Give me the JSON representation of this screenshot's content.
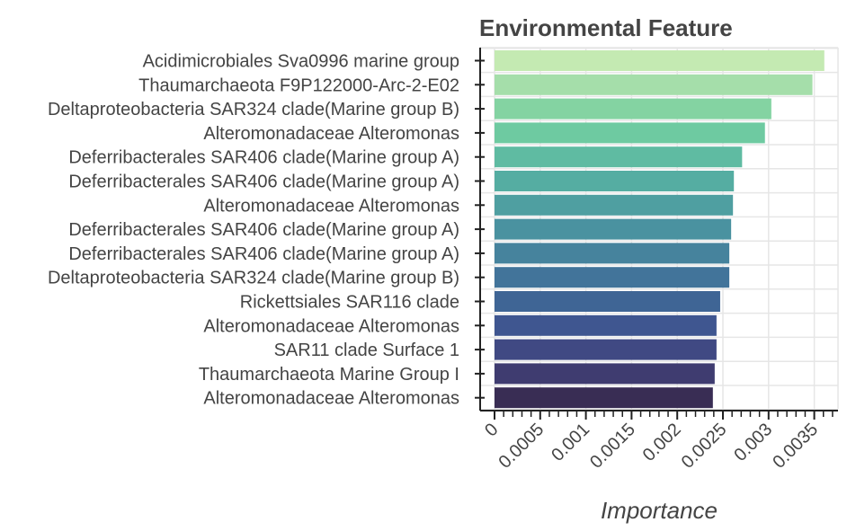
{
  "chart_data": {
    "type": "bar",
    "orientation": "horizontal",
    "title": "Environmental Feature",
    "xlabel": "Importance",
    "ylabel": "",
    "xlim": [
      0,
      0.00372
    ],
    "grid": true,
    "legend": "none",
    "x_ticks": [
      0,
      0.0005,
      0.001,
      0.0015,
      0.002,
      0.0025,
      0.003,
      0.0035
    ],
    "x_tick_labels": [
      "0",
      "0.0005",
      "0.001",
      "0.0015",
      "0.002",
      "0.0025",
      "0.003",
      "0.0035"
    ],
    "categories": [
      "Acidimicrobiales Sva0996 marine group",
      "Thaumarchaeota F9P122000-Arc-2-E02",
      "Deltaproteobacteria SAR324 clade(Marine group B)",
      "Alteromonadaceae Alteromonas",
      "Deferribacterales SAR406 clade(Marine group A)",
      "Deferribacterales SAR406 clade(Marine group A)",
      "Alteromonadaceae Alteromonas",
      "Deferribacterales SAR406 clade(Marine group A)",
      "Deferribacterales SAR406 clade(Marine group A)",
      "Deltaproteobacteria SAR324 clade(Marine group B)",
      "Rickettsiales SAR116 clade",
      "Alteromonadaceae Alteromonas",
      "SAR11 clade Surface 1",
      "Thaumarchaeota Marine Group I",
      "Alteromonadaceae Alteromonas"
    ],
    "values": [
      0.00361,
      0.00348,
      0.00303,
      0.00296,
      0.00271,
      0.00262,
      0.00261,
      0.00259,
      0.00257,
      0.00257,
      0.00247,
      0.00243,
      0.00243,
      0.00241,
      0.00239
    ],
    "colors": [
      "#c4eab2",
      "#a5deaa",
      "#84d3a2",
      "#6ecaa1",
      "#5fbba2",
      "#55ada2",
      "#4f9fa1",
      "#4a92a0",
      "#46839d",
      "#42749a",
      "#3f6595",
      "#3f5690",
      "#404983",
      "#3f3c70",
      "#392d54"
    ]
  }
}
